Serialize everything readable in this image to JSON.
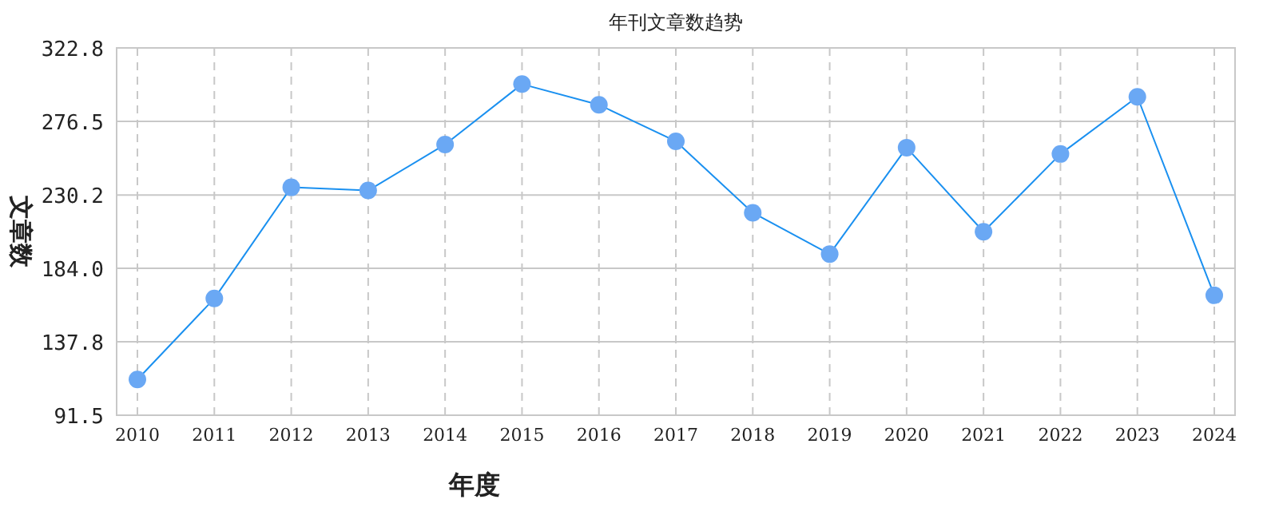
{
  "chart_data": {
    "type": "line",
    "title": "年刊文章数趋势",
    "xlabel": "年度",
    "ylabel": "文章数",
    "categories": [
      "2010",
      "2011",
      "2012",
      "2013",
      "2014",
      "2015",
      "2016",
      "2017",
      "2018",
      "2019",
      "2020",
      "2021",
      "2022",
      "2023",
      "2024"
    ],
    "series": [
      {
        "color": "#1a90f0",
        "values": [
          114,
          165,
          235,
          233,
          262,
          300,
          287,
          264,
          219,
          193,
          260,
          207,
          256,
          292,
          167
        ]
      }
    ],
    "ylim": [
      91.5,
      322.8
    ],
    "yticks": [
      {
        "value": 91.5,
        "label": "91.5"
      },
      {
        "value": 137.8,
        "label": "137.8"
      },
      {
        "value": 184.0,
        "label": "184.0"
      },
      {
        "value": 230.2,
        "label": "230.2"
      },
      {
        "value": 276.5,
        "label": "276.5"
      },
      {
        "value": 322.8,
        "label": "322.8"
      }
    ],
    "grid": true,
    "marker": "circle"
  }
}
